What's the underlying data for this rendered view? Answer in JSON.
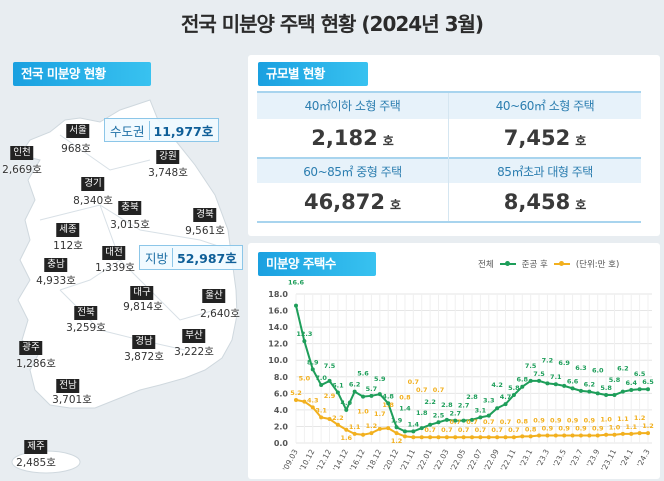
{
  "title": "전국 미분양 주택 현황 (2024년 3월)",
  "map": {
    "heading": "전국 미분양 현황",
    "capital_area": {
      "label": "수도권",
      "value": "11,977호"
    },
    "provinces_total": {
      "label": "지방",
      "value": "52,987호"
    },
    "regions": [
      {
        "name": "서울",
        "value": "968호"
      },
      {
        "name": "인천",
        "value": "2,669호"
      },
      {
        "name": "경기",
        "value": "8,340호"
      },
      {
        "name": "강원",
        "value": "3,748호"
      },
      {
        "name": "충북",
        "value": "3,015호"
      },
      {
        "name": "경북",
        "value": "9,561호"
      },
      {
        "name": "세종",
        "value": "112호"
      },
      {
        "name": "대전",
        "value": "1,339호"
      },
      {
        "name": "충남",
        "value": "4,933호"
      },
      {
        "name": "대구",
        "value": "9,814호"
      },
      {
        "name": "울산",
        "value": "2,640호"
      },
      {
        "name": "전북",
        "value": "3,259호"
      },
      {
        "name": "경남",
        "value": "3,872호"
      },
      {
        "name": "부산",
        "value": "3,222호"
      },
      {
        "name": "광주",
        "value": "1,286호"
      },
      {
        "name": "전남",
        "value": "3,701호"
      },
      {
        "name": "제주",
        "value": "2,485호"
      }
    ]
  },
  "size": {
    "heading": "규모별 현황",
    "unit": "호",
    "items": [
      {
        "label": "40㎡이하 소형 주택",
        "value": "2,182"
      },
      {
        "label": "40~60㎡ 소형 주택",
        "value": "7,452"
      },
      {
        "label": "60~85㎡ 중형 주택",
        "value": "46,872"
      },
      {
        "label": "85㎡초과 대형 주택",
        "value": "8,458"
      }
    ]
  },
  "chart_section": {
    "heading": "미분양 주택수",
    "legend_total": "전체",
    "legend_completed": "준공 후",
    "unit_note": "(단위:만 호)"
  },
  "colors": {
    "total": "#1e9e5a",
    "completed": "#f2b01e",
    "accent": "#1aa0e0"
  },
  "chart_data": {
    "type": "line",
    "ylim": [
      0,
      18
    ],
    "yticks": [
      "0.0",
      "2.0",
      "4.0",
      "6.0",
      "8.0",
      "10.0",
      "12.0",
      "14.0",
      "16.0",
      "18.0"
    ],
    "xticklabels": [
      "'09.03",
      "'10.12",
      "'12.12",
      "'14.12",
      "'16.12",
      "'18.12",
      "'20.12",
      "'21.11",
      "'22.01",
      "'22.03",
      "'22.05",
      "'22.07",
      "'22.09",
      "'22.11",
      "'23.1",
      "'23.3",
      "'23.5",
      "'23.7",
      "'23.9",
      "'23.11",
      "'24.1",
      "'24.3"
    ],
    "series": [
      {
        "name": "전체",
        "values": [
          16.6,
          12.3,
          8.9,
          7.0,
          7.5,
          6.1,
          4.0,
          6.2,
          5.6,
          5.7,
          5.9,
          4.8,
          1.9,
          1.4,
          1.4,
          1.8,
          2.2,
          2.5,
          2.8,
          2.7,
          2.7,
          2.8,
          3.1,
          3.3,
          4.2,
          4.7,
          5.8,
          6.8,
          7.5,
          7.5,
          7.2,
          7.1,
          6.9,
          6.6,
          6.3,
          6.2,
          6.0,
          5.8,
          5.8,
          6.2,
          6.4,
          6.5,
          6.5
        ]
      },
      {
        "name": "준공 후",
        "values": [
          5.2,
          5.0,
          4.3,
          3.1,
          2.9,
          2.2,
          1.6,
          1.1,
          1.0,
          1.2,
          1.7,
          1.8,
          1.2,
          0.8,
          0.7,
          0.7,
          0.7,
          0.7,
          0.7,
          0.7,
          0.7,
          0.7,
          0.7,
          0.7,
          0.7,
          0.7,
          0.7,
          0.8,
          0.8,
          0.9,
          0.9,
          0.9,
          0.9,
          0.9,
          0.9,
          0.9,
          0.9,
          1.0,
          1.0,
          1.1,
          1.1,
          1.2,
          1.2
        ]
      }
    ]
  }
}
